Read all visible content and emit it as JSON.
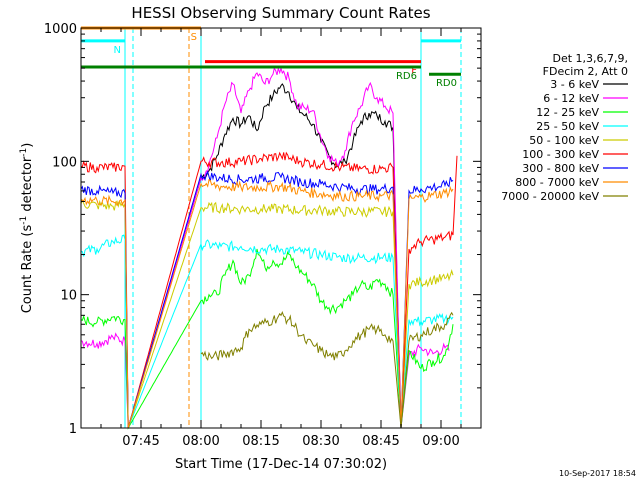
{
  "chart_data": {
    "type": "line",
    "title": "HESSI Observing Summary Count Rates",
    "xlabel": "Start Time (17-Dec-14 07:30:02)",
    "ylabel_main": "Count Rate (s",
    "ylabel_sup1": "-1",
    "ylabel_mid": " detector",
    "ylabel_sup2": "-1",
    "ylabel_end": ")",
    "yscale": "log",
    "ylim": [
      1,
      1000
    ],
    "xlim_minutes": [
      0,
      100
    ],
    "y_ticks": [
      {
        "value": 1,
        "label": "1"
      },
      {
        "value": 10,
        "label": "10"
      },
      {
        "value": 100,
        "label": "100"
      },
      {
        "value": 1000,
        "label": "1000"
      }
    ],
    "x_ticks": [
      {
        "min": 15,
        "label": "07:45"
      },
      {
        "min": 30,
        "label": "08:00"
      },
      {
        "min": 45,
        "label": "08:15"
      },
      {
        "min": 60,
        "label": "08:30"
      },
      {
        "min": 75,
        "label": "08:45"
      },
      {
        "min": 90,
        "label": "09:00"
      }
    ],
    "legend_header": [
      "Det 1,3,6,7,9,",
      "FDecim 2, Att 0"
    ],
    "legend_placement": "right",
    "series": [
      {
        "name": "3 - 6 keV",
        "color": "#000000",
        "x": [
          0,
          11,
          11.8,
          30,
          32,
          34,
          36,
          38,
          40,
          42,
          44,
          46,
          48,
          50,
          52,
          54,
          56,
          58,
          60,
          62,
          64,
          66,
          68,
          70,
          72,
          74,
          76,
          78,
          80,
          82,
          85,
          87,
          89,
          92,
          95,
          98,
          100
        ],
        "y": [
          null,
          null,
          1,
          75,
          85,
          110,
          160,
          210,
          190,
          220,
          170,
          260,
          310,
          370,
          330,
          250,
          220,
          190,
          140,
          110,
          92,
          100,
          140,
          200,
          230,
          220,
          200,
          180,
          1,
          null,
          null,
          null,
          null,
          null,
          null,
          null,
          null
        ]
      },
      {
        "name": "6 - 12 keV",
        "color": "#ff00ff",
        "x": [
          0,
          4,
          8,
          11,
          11.8,
          30,
          32,
          34,
          36,
          38,
          40,
          42,
          44,
          46,
          48,
          50,
          52,
          54,
          56,
          58,
          60,
          62,
          64,
          66,
          68,
          70,
          72,
          74,
          76,
          78,
          80,
          82,
          85,
          88,
          91,
          92
        ],
        "y": [
          4.5,
          4.3,
          4.8,
          4.5,
          1,
          75,
          95,
          150,
          270,
          380,
          230,
          340,
          460,
          380,
          450,
          500,
          420,
          260,
          250,
          240,
          150,
          110,
          95,
          120,
          200,
          260,
          370,
          300,
          260,
          230,
          1,
          3.5,
          4,
          3.6,
          4,
          3.8
        ]
      },
      {
        "name": "12 - 25 keV",
        "color": "#00ff00",
        "x": [
          0,
          4,
          8,
          11,
          11.8,
          30,
          32,
          34,
          36,
          38,
          40,
          42,
          44,
          46,
          48,
          50,
          52,
          54,
          56,
          58,
          60,
          62,
          64,
          66,
          68,
          70,
          72,
          74,
          76,
          78,
          80,
          82,
          85,
          88,
          91,
          93
        ],
        "y": [
          6.5,
          6.2,
          6.8,
          6.5,
          1,
          9,
          10,
          10,
          14,
          18,
          12,
          14,
          22,
          16,
          18,
          17,
          20,
          16,
          14,
          12,
          9,
          8,
          8,
          9,
          10,
          12,
          11,
          13,
          12,
          10,
          1,
          3.8,
          2.8,
          3.2,
          3.5,
          6
        ]
      },
      {
        "name": "25 - 50 keV",
        "color": "#00ffff",
        "x": [
          0,
          4,
          8,
          11,
          11.8,
          30,
          35,
          40,
          45,
          50,
          55,
          60,
          65,
          70,
          75,
          78,
          80,
          82,
          85,
          88,
          91,
          93
        ],
        "y": [
          21,
          22,
          25,
          26,
          1,
          24,
          23,
          23,
          22,
          22,
          21,
          20,
          19,
          19,
          19,
          19,
          1,
          6.5,
          6.3,
          6.5,
          6.6,
          6.8
        ]
      },
      {
        "name": "50 - 100 keV",
        "color": "#cccc00",
        "x": [
          0,
          4,
          8,
          11,
          11.8,
          30,
          35,
          40,
          45,
          50,
          55,
          60,
          65,
          70,
          75,
          78,
          80,
          82,
          85,
          88,
          91,
          93
        ],
        "y": [
          48,
          47,
          46,
          48,
          1,
          45,
          45,
          44,
          44,
          44,
          43,
          43,
          42,
          42,
          42,
          42,
          1,
          12,
          12.5,
          13,
          13.2,
          14
        ]
      },
      {
        "name": "100 - 300 keV",
        "color": "#ff0000",
        "x": [
          0,
          4,
          8,
          11,
          11.8,
          30,
          35,
          40,
          45,
          50,
          55,
          60,
          65,
          70,
          75,
          78,
          80,
          82,
          85,
          88,
          91,
          93,
          94
        ],
        "y": [
          92,
          90,
          90,
          92,
          1,
          100,
          98,
          100,
          105,
          110,
          100,
          95,
          90,
          88,
          88,
          90,
          1,
          22,
          25,
          26,
          27,
          28,
          110
        ]
      },
      {
        "name": "300 - 800 keV",
        "color": "#0000ff",
        "x": [
          0,
          4,
          8,
          11,
          11.8,
          30,
          35,
          40,
          45,
          50,
          55,
          60,
          65,
          70,
          75,
          78,
          80,
          82,
          85,
          88,
          91,
          93
        ],
        "y": [
          62,
          60,
          58,
          58,
          1,
          80,
          75,
          73,
          75,
          76,
          70,
          68,
          64,
          62,
          62,
          64,
          1,
          60,
          62,
          64,
          66,
          72
        ]
      },
      {
        "name": "800 - 7000 keV",
        "color": "#ff8c00",
        "x": [
          0,
          4,
          8,
          11,
          11.8,
          30,
          35,
          40,
          45,
          50,
          55,
          60,
          65,
          70,
          75,
          78,
          80,
          82,
          85,
          88,
          91,
          93
        ],
        "y": [
          52,
          51,
          50,
          51,
          1,
          68,
          65,
          64,
          64,
          65,
          60,
          57,
          55,
          55,
          55,
          56,
          1,
          52,
          54,
          56,
          58,
          62
        ]
      },
      {
        "name": "7000 - 20000 keV",
        "color": "#808000",
        "x": [
          0,
          4,
          8,
          11,
          11.8,
          30,
          33,
          36,
          40,
          42,
          45,
          48,
          50,
          52,
          54,
          56,
          58,
          60,
          62,
          64,
          66,
          68,
          70,
          72,
          74,
          76,
          78,
          80,
          82,
          85,
          88,
          91,
          93
        ],
        "y": [
          null,
          null,
          null,
          null,
          null,
          3.6,
          3.4,
          3.6,
          4,
          5.5,
          6,
          6.5,
          7,
          6.5,
          5.5,
          4.5,
          4.2,
          3.8,
          3.5,
          3.4,
          3.8,
          4.5,
          5,
          5.5,
          5.5,
          5,
          4.5,
          1,
          4.5,
          5,
          5.5,
          6,
          7
        ]
      }
    ],
    "bars": [
      {
        "label": "S",
        "color": "#ff8c00",
        "from": 0,
        "to": 30,
        "y": 1000
      },
      {
        "label": "N",
        "color": "#00ffff",
        "from": 0,
        "to": 11,
        "y": 800
      },
      {
        "label": "F",
        "color": "#ff0000",
        "from": 31,
        "to": 85,
        "y": 560
      },
      {
        "label": "RD6",
        "color": "#008000",
        "from": 0,
        "to": 85,
        "y": 510
      },
      {
        "label": "RD0",
        "color": "#008000",
        "from": 87,
        "to": 95,
        "y": 450
      },
      {
        "label": "",
        "color": "#00ffff",
        "from": 85,
        "to": 95,
        "y": 800
      }
    ],
    "vlines": [
      {
        "min": 11,
        "color": "#00ffff",
        "dashed": false
      },
      {
        "min": 13,
        "color": "#00ffff",
        "dashed": true
      },
      {
        "min": 27,
        "color": "#ff8c00",
        "dashed": true
      },
      {
        "min": 30,
        "color": "#00ffff",
        "dashed": false
      },
      {
        "min": 85,
        "color": "#00ffff",
        "dashed": false
      },
      {
        "min": 95,
        "color": "#00ffff",
        "dashed": true
      }
    ],
    "grid": false
  },
  "footer_timestamp": "10-Sep-2017 18:54"
}
